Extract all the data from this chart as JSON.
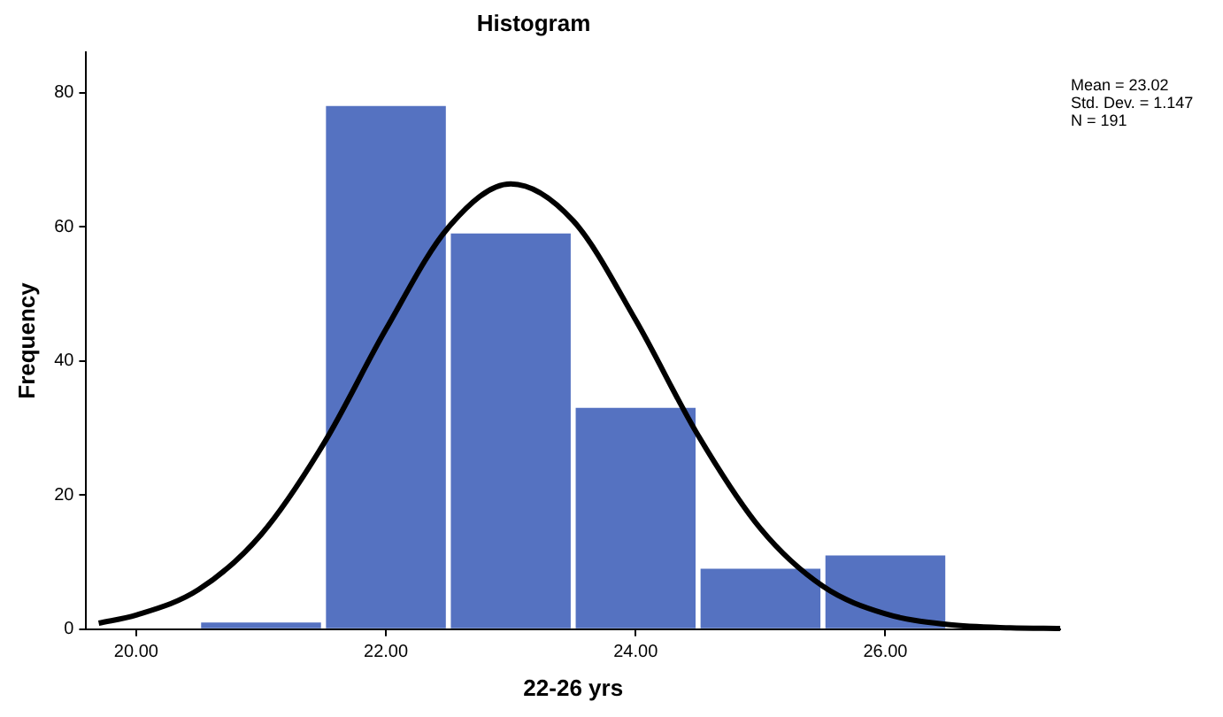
{
  "chart_data": {
    "type": "histogram",
    "title": "Histogram",
    "xlabel": "22-26 yrs",
    "ylabel": "Frequency",
    "bins": [
      20.5,
      21.5,
      22.5,
      23.5,
      24.5,
      25.5,
      26.5
    ],
    "values": [
      1,
      78,
      59,
      33,
      9,
      11
    ],
    "color": "#5572c1",
    "series": [
      {
        "type": "line",
        "color": "#000000",
        "x": [
          19.7,
          20,
          20.5,
          21,
          21.5,
          22,
          22.5,
          23,
          23.5,
          24,
          24.5,
          25,
          25.5,
          26,
          26.5,
          27,
          27.4
        ],
        "values": [
          0.9,
          2.1,
          5.9,
          14.1,
          27.6,
          44.7,
          59.9,
          66.4,
          60.9,
          46.1,
          28.9,
          15.0,
          6.4,
          2.3,
          0.7,
          0.2,
          0.1
        ]
      }
    ],
    "xlim": [
      19.6,
      27.4
    ],
    "xticks": [
      {
        "value": 20,
        "label": "20.00"
      },
      {
        "value": 22,
        "label": "22.00"
      },
      {
        "value": 24,
        "label": "24.00"
      },
      {
        "value": 26,
        "label": "26.00"
      }
    ],
    "ylim": [
      0,
      86
    ],
    "yticks": [
      0,
      20,
      40,
      60,
      80
    ],
    "grid": false,
    "legend": false,
    "marker": "none",
    "line_style": "solid",
    "annotations": [
      "Mean = 23.02",
      "Std. Dev. = 1.147",
      "N = 191"
    ]
  }
}
